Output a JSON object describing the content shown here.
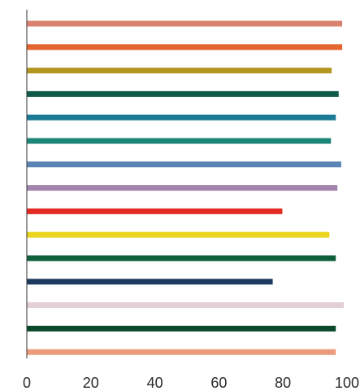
{
  "chart_data": {
    "type": "bar",
    "orientation": "horizontal",
    "title": "",
    "xlabel": "",
    "ylabel": "",
    "xlim": [
      0,
      100
    ],
    "x_ticks": [
      0,
      20,
      40,
      60,
      80,
      100
    ],
    "x_tick_labels": [
      "0",
      "20",
      "40",
      "60",
      "80",
      "100"
    ],
    "grid": false,
    "legend": "none",
    "bars": [
      {
        "value": 98.5,
        "color": "#d9826f"
      },
      {
        "value": 98.5,
        "color": "#e6652f"
      },
      {
        "value": 95.2,
        "color": "#b3951f"
      },
      {
        "value": 97.4,
        "color": "#0e5a4b"
      },
      {
        "value": 96.5,
        "color": "#1b7a96"
      },
      {
        "value": 95.0,
        "color": "#1d8577"
      },
      {
        "value": 98.2,
        "color": "#5a84b5"
      },
      {
        "value": 97.0,
        "color": "#a384ad"
      },
      {
        "value": 79.8,
        "color": "#e32b23"
      },
      {
        "value": 94.5,
        "color": "#ead51f"
      },
      {
        "value": 96.5,
        "color": "#0f5f3d"
      },
      {
        "value": 76.8,
        "color": "#1b3a5e"
      },
      {
        "value": 99.0,
        "color": "#e4cfd6"
      },
      {
        "value": 96.5,
        "color": "#0a4a2b"
      },
      {
        "value": 96.5,
        "color": "#ec9a7c"
      }
    ]
  }
}
